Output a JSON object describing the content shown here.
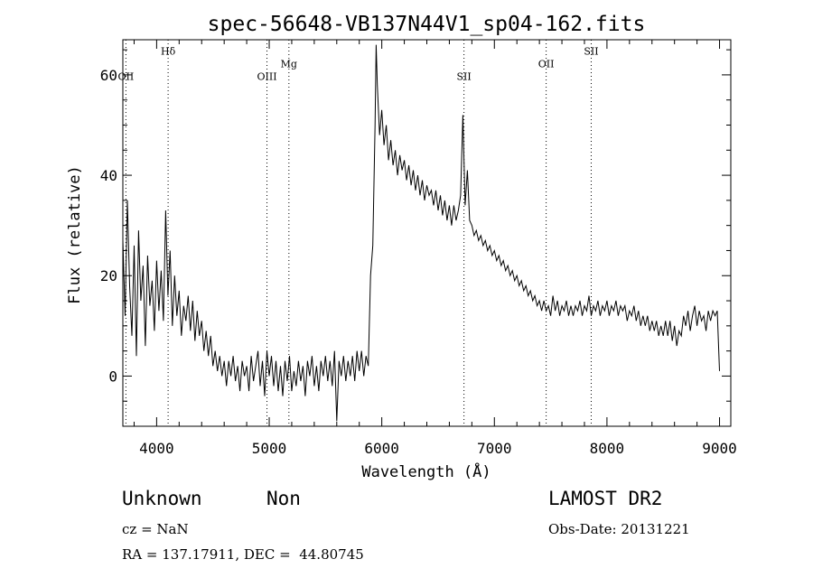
{
  "chart_data": {
    "type": "line",
    "title": "spec-56648-VB137N44V1_sp04-162.fits",
    "xlabel": "Wavelength (Å)",
    "ylabel": "Flux (relative)",
    "xlim": [
      3700,
      9100
    ],
    "ylim": [
      -10,
      67
    ],
    "x_ticks": [
      4000,
      5000,
      6000,
      7000,
      8000,
      9000
    ],
    "y_ticks": [
      0,
      20,
      40,
      60
    ],
    "x_tick_labels": [
      "4000",
      "5000",
      "6000",
      "7000",
      "8000",
      "9000"
    ],
    "y_tick_labels": [
      "0",
      "20",
      "40",
      "60"
    ],
    "grid": false,
    "line_color": "#000000",
    "spectral_lines": [
      {
        "label": "OII",
        "x": 3727,
        "label_y": 59
      },
      {
        "label": "Hδ",
        "x": 4102,
        "label_y": 64
      },
      {
        "label": "OIII",
        "x": 4980,
        "label_y": 59
      },
      {
        "label": "Mg",
        "x": 5175,
        "label_y": 61.5
      },
      {
        "label": "SII",
        "x": 6730,
        "label_y": 59
      },
      {
        "label": "OII",
        "x": 7460,
        "label_y": 61.5
      },
      {
        "label": "SII",
        "x": 7860,
        "label_y": 64
      }
    ],
    "series": [
      {
        "values": [
          [
            3700,
            27
          ],
          [
            3720,
            12
          ],
          [
            3740,
            35
          ],
          [
            3760,
            18
          ],
          [
            3780,
            8
          ],
          [
            3800,
            26
          ],
          [
            3820,
            4
          ],
          [
            3840,
            29
          ],
          [
            3860,
            15
          ],
          [
            3880,
            22
          ],
          [
            3900,
            6
          ],
          [
            3920,
            24
          ],
          [
            3940,
            14
          ],
          [
            3960,
            19
          ],
          [
            3980,
            9
          ],
          [
            4000,
            23
          ],
          [
            4020,
            13
          ],
          [
            4040,
            21
          ],
          [
            4060,
            11
          ],
          [
            4080,
            33
          ],
          [
            4100,
            16
          ],
          [
            4120,
            25
          ],
          [
            4140,
            10
          ],
          [
            4160,
            20
          ],
          [
            4180,
            12
          ],
          [
            4200,
            17
          ],
          [
            4220,
            8
          ],
          [
            4240,
            14
          ],
          [
            4260,
            11
          ],
          [
            4280,
            16
          ],
          [
            4300,
            9
          ],
          [
            4320,
            15
          ],
          [
            4340,
            7
          ],
          [
            4360,
            13
          ],
          [
            4380,
            8
          ],
          [
            4400,
            11
          ],
          [
            4420,
            5
          ],
          [
            4440,
            9
          ],
          [
            4460,
            4
          ],
          [
            4480,
            8
          ],
          [
            4500,
            2
          ],
          [
            4520,
            5
          ],
          [
            4540,
            1
          ],
          [
            4560,
            4
          ],
          [
            4580,
            0
          ],
          [
            4600,
            3
          ],
          [
            4620,
            -2
          ],
          [
            4640,
            3
          ],
          [
            4660,
            0
          ],
          [
            4680,
            4
          ],
          [
            4700,
            -1
          ],
          [
            4720,
            2
          ],
          [
            4740,
            -3
          ],
          [
            4760,
            3
          ],
          [
            4780,
            0
          ],
          [
            4800,
            2
          ],
          [
            4820,
            -3
          ],
          [
            4840,
            4
          ],
          [
            4860,
            -1
          ],
          [
            4880,
            2
          ],
          [
            4900,
            5
          ],
          [
            4920,
            -2
          ],
          [
            4940,
            3
          ],
          [
            4960,
            -4
          ],
          [
            4980,
            5
          ],
          [
            5000,
            0
          ],
          [
            5020,
            4
          ],
          [
            5040,
            -2
          ],
          [
            5060,
            3
          ],
          [
            5080,
            -3
          ],
          [
            5100,
            2
          ],
          [
            5120,
            -4
          ],
          [
            5140,
            3
          ],
          [
            5160,
            -1
          ],
          [
            5180,
            4
          ],
          [
            5200,
            -3
          ],
          [
            5220,
            1
          ],
          [
            5240,
            -2
          ],
          [
            5260,
            3
          ],
          [
            5280,
            -1
          ],
          [
            5300,
            2
          ],
          [
            5320,
            -4
          ],
          [
            5340,
            3
          ],
          [
            5360,
            0
          ],
          [
            5380,
            4
          ],
          [
            5400,
            -2
          ],
          [
            5420,
            2
          ],
          [
            5440,
            -3
          ],
          [
            5460,
            3
          ],
          [
            5480,
            0
          ],
          [
            5500,
            4
          ],
          [
            5520,
            -1
          ],
          [
            5540,
            3
          ],
          [
            5560,
            -2
          ],
          [
            5580,
            5
          ],
          [
            5600,
            -9
          ],
          [
            5620,
            3
          ],
          [
            5640,
            0
          ],
          [
            5660,
            4
          ],
          [
            5680,
            -1
          ],
          [
            5700,
            3
          ],
          [
            5720,
            0
          ],
          [
            5740,
            4
          ],
          [
            5760,
            -1
          ],
          [
            5780,
            5
          ],
          [
            5800,
            1
          ],
          [
            5820,
            5
          ],
          [
            5840,
            0
          ],
          [
            5860,
            4
          ],
          [
            5880,
            2
          ],
          [
            5900,
            20
          ],
          [
            5920,
            26
          ],
          [
            5940,
            50
          ],
          [
            5950,
            66
          ],
          [
            5960,
            58
          ],
          [
            5980,
            48
          ],
          [
            6000,
            53
          ],
          [
            6020,
            46
          ],
          [
            6040,
            50
          ],
          [
            6060,
            43
          ],
          [
            6080,
            47
          ],
          [
            6100,
            42
          ],
          [
            6120,
            45
          ],
          [
            6140,
            40
          ],
          [
            6160,
            44
          ],
          [
            6180,
            41
          ],
          [
            6200,
            43
          ],
          [
            6220,
            39
          ],
          [
            6240,
            42
          ],
          [
            6260,
            38
          ],
          [
            6280,
            41
          ],
          [
            6300,
            37
          ],
          [
            6320,
            40
          ],
          [
            6340,
            36
          ],
          [
            6360,
            39
          ],
          [
            6380,
            35
          ],
          [
            6400,
            38
          ],
          [
            6420,
            36
          ],
          [
            6440,
            37
          ],
          [
            6460,
            34
          ],
          [
            6480,
            37
          ],
          [
            6500,
            33
          ],
          [
            6520,
            36
          ],
          [
            6540,
            32
          ],
          [
            6560,
            35
          ],
          [
            6580,
            31
          ],
          [
            6600,
            34
          ],
          [
            6620,
            30
          ],
          [
            6640,
            34
          ],
          [
            6660,
            31
          ],
          [
            6680,
            33
          ],
          [
            6700,
            36
          ],
          [
            6720,
            52
          ],
          [
            6740,
            34
          ],
          [
            6760,
            41
          ],
          [
            6780,
            31
          ],
          [
            6800,
            30
          ],
          [
            6820,
            28
          ],
          [
            6840,
            29
          ],
          [
            6860,
            27
          ],
          [
            6880,
            28
          ],
          [
            6900,
            26
          ],
          [
            6920,
            27
          ],
          [
            6940,
            25
          ],
          [
            6960,
            26
          ],
          [
            6980,
            24
          ],
          [
            7000,
            25
          ],
          [
            7020,
            23
          ],
          [
            7040,
            24
          ],
          [
            7060,
            22
          ],
          [
            7080,
            23
          ],
          [
            7100,
            21
          ],
          [
            7120,
            22
          ],
          [
            7140,
            20
          ],
          [
            7160,
            21
          ],
          [
            7180,
            19
          ],
          [
            7200,
            20
          ],
          [
            7220,
            18
          ],
          [
            7240,
            19
          ],
          [
            7260,
            17
          ],
          [
            7280,
            18
          ],
          [
            7300,
            16
          ],
          [
            7320,
            17
          ],
          [
            7340,
            15
          ],
          [
            7360,
            16
          ],
          [
            7380,
            14
          ],
          [
            7400,
            15
          ],
          [
            7420,
            13
          ],
          [
            7440,
            15
          ],
          [
            7460,
            13
          ],
          [
            7480,
            14
          ],
          [
            7500,
            12
          ],
          [
            7520,
            16
          ],
          [
            7540,
            13
          ],
          [
            7560,
            15
          ],
          [
            7580,
            12
          ],
          [
            7600,
            14
          ],
          [
            7620,
            13
          ],
          [
            7640,
            15
          ],
          [
            7660,
            12
          ],
          [
            7680,
            14
          ],
          [
            7700,
            12
          ],
          [
            7720,
            14
          ],
          [
            7740,
            13
          ],
          [
            7760,
            15
          ],
          [
            7780,
            12
          ],
          [
            7800,
            14
          ],
          [
            7820,
            13
          ],
          [
            7840,
            16
          ],
          [
            7860,
            12
          ],
          [
            7880,
            14
          ],
          [
            7900,
            13
          ],
          [
            7920,
            15
          ],
          [
            7940,
            12
          ],
          [
            7960,
            14
          ],
          [
            7980,
            13
          ],
          [
            8000,
            15
          ],
          [
            8020,
            12
          ],
          [
            8040,
            14
          ],
          [
            8060,
            13
          ],
          [
            8080,
            15
          ],
          [
            8100,
            12
          ],
          [
            8120,
            14
          ],
          [
            8140,
            13
          ],
          [
            8160,
            14
          ],
          [
            8180,
            11
          ],
          [
            8200,
            13
          ],
          [
            8220,
            12
          ],
          [
            8240,
            14
          ],
          [
            8260,
            11
          ],
          [
            8280,
            13
          ],
          [
            8300,
            10
          ],
          [
            8320,
            12
          ],
          [
            8340,
            10
          ],
          [
            8360,
            12
          ],
          [
            8380,
            9
          ],
          [
            8400,
            11
          ],
          [
            8420,
            9
          ],
          [
            8440,
            11
          ],
          [
            8460,
            8
          ],
          [
            8480,
            10
          ],
          [
            8500,
            8
          ],
          [
            8520,
            11
          ],
          [
            8540,
            8
          ],
          [
            8560,
            11
          ],
          [
            8580,
            7
          ],
          [
            8600,
            10
          ],
          [
            8620,
            6
          ],
          [
            8640,
            9
          ],
          [
            8660,
            8
          ],
          [
            8680,
            12
          ],
          [
            8700,
            10
          ],
          [
            8720,
            13
          ],
          [
            8740,
            9
          ],
          [
            8760,
            12
          ],
          [
            8780,
            14
          ],
          [
            8800,
            10
          ],
          [
            8820,
            13
          ],
          [
            8840,
            11
          ],
          [
            8860,
            12
          ],
          [
            8880,
            9
          ],
          [
            8900,
            13
          ],
          [
            8920,
            11
          ],
          [
            8940,
            13
          ],
          [
            8960,
            12
          ],
          [
            8980,
            13
          ],
          [
            9000,
            1
          ]
        ]
      }
    ]
  },
  "info": {
    "class": "Unknown",
    "subclass": "Non",
    "survey": "LAMOST DR2",
    "cz": "cz = NaN",
    "obs_date": "Obs-Date: 20131221",
    "coords": "RA = 137.17911, DEC =  44.80745"
  }
}
